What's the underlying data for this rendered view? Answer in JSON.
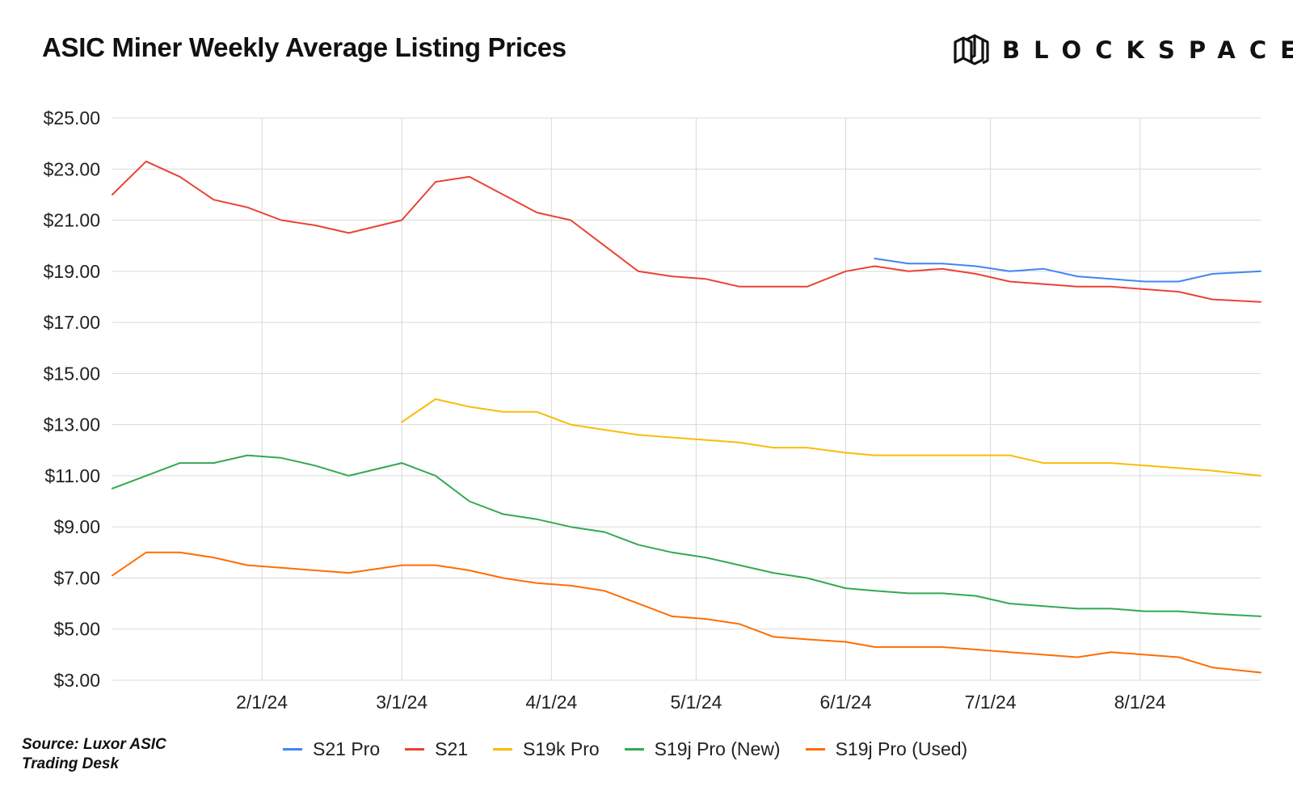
{
  "header": {
    "title": "ASIC Miner Weekly Average Listing Prices",
    "brand": "BLOCKSPACE",
    "brand_icon": "stacked-cubes-logo-icon"
  },
  "footer": {
    "source": "Source: Luxor ASIC Trading Desk"
  },
  "chart_data": {
    "type": "line",
    "title": "ASIC Miner Weekly Average Listing Prices",
    "xlabel": "",
    "ylabel": "",
    "x_range": [
      "2024-01-01",
      "2024-08-26"
    ],
    "ylim": [
      3,
      25
    ],
    "y_ticks": [
      3,
      5,
      7,
      9,
      11,
      13,
      15,
      17,
      19,
      21,
      23,
      25
    ],
    "y_tick_labels": [
      "$3.00",
      "$5.00",
      "$7.00",
      "$9.00",
      "$11.00",
      "$13.00",
      "$15.00",
      "$17.00",
      "$19.00",
      "$21.00",
      "$23.00",
      "$25.00"
    ],
    "x_ticks": [
      "2024-02-01",
      "2024-03-01",
      "2024-04-01",
      "2024-05-01",
      "2024-06-01",
      "2024-07-01",
      "2024-08-01"
    ],
    "x_tick_labels": [
      "2/1/24",
      "3/1/24",
      "4/1/24",
      "5/1/24",
      "6/1/24",
      "7/1/24",
      "8/1/24"
    ],
    "grid": true,
    "legend_position": "bottom",
    "series": [
      {
        "name": "S21 Pro",
        "color": "#4285f4",
        "points": [
          [
            "2024-06-07",
            19.5
          ],
          [
            "2024-06-14",
            19.3
          ],
          [
            "2024-06-21",
            19.3
          ],
          [
            "2024-06-28",
            19.2
          ],
          [
            "2024-07-05",
            19.0
          ],
          [
            "2024-07-12",
            19.1
          ],
          [
            "2024-07-19",
            18.8
          ],
          [
            "2024-07-26",
            18.7
          ],
          [
            "2024-08-02",
            18.6
          ],
          [
            "2024-08-09",
            18.6
          ],
          [
            "2024-08-16",
            18.9
          ],
          [
            "2024-08-26",
            19.0
          ]
        ]
      },
      {
        "name": "S21",
        "color": "#ea4335",
        "points": [
          [
            "2024-01-01",
            22.0
          ],
          [
            "2024-01-08",
            23.3
          ],
          [
            "2024-01-15",
            22.7
          ],
          [
            "2024-01-22",
            21.8
          ],
          [
            "2024-01-29",
            21.5
          ],
          [
            "2024-02-05",
            21.0
          ],
          [
            "2024-02-12",
            20.8
          ],
          [
            "2024-02-19",
            20.5
          ],
          [
            "2024-03-01",
            21.0
          ],
          [
            "2024-03-08",
            22.5
          ],
          [
            "2024-03-15",
            22.7
          ],
          [
            "2024-03-22",
            22.0
          ],
          [
            "2024-03-29",
            21.3
          ],
          [
            "2024-04-05",
            21.0
          ],
          [
            "2024-04-12",
            20.0
          ],
          [
            "2024-04-19",
            19.0
          ],
          [
            "2024-04-26",
            18.8
          ],
          [
            "2024-05-03",
            18.7
          ],
          [
            "2024-05-10",
            18.4
          ],
          [
            "2024-05-17",
            18.4
          ],
          [
            "2024-05-24",
            18.4
          ],
          [
            "2024-06-01",
            19.0
          ],
          [
            "2024-06-07",
            19.2
          ],
          [
            "2024-06-14",
            19.0
          ],
          [
            "2024-06-21",
            19.1
          ],
          [
            "2024-06-28",
            18.9
          ],
          [
            "2024-07-05",
            18.6
          ],
          [
            "2024-07-12",
            18.5
          ],
          [
            "2024-07-19",
            18.4
          ],
          [
            "2024-07-26",
            18.4
          ],
          [
            "2024-08-02",
            18.3
          ],
          [
            "2024-08-09",
            18.2
          ],
          [
            "2024-08-16",
            17.9
          ],
          [
            "2024-08-26",
            17.8
          ]
        ]
      },
      {
        "name": "S19k Pro",
        "color": "#fbbc04",
        "points": [
          [
            "2024-03-01",
            13.1
          ],
          [
            "2024-03-08",
            14.0
          ],
          [
            "2024-03-15",
            13.7
          ],
          [
            "2024-03-22",
            13.5
          ],
          [
            "2024-03-29",
            13.5
          ],
          [
            "2024-04-05",
            13.0
          ],
          [
            "2024-04-12",
            12.8
          ],
          [
            "2024-04-19",
            12.6
          ],
          [
            "2024-04-26",
            12.5
          ],
          [
            "2024-05-03",
            12.4
          ],
          [
            "2024-05-10",
            12.3
          ],
          [
            "2024-05-17",
            12.1
          ],
          [
            "2024-05-24",
            12.1
          ],
          [
            "2024-06-01",
            11.9
          ],
          [
            "2024-06-07",
            11.8
          ],
          [
            "2024-06-14",
            11.8
          ],
          [
            "2024-06-21",
            11.8
          ],
          [
            "2024-06-28",
            11.8
          ],
          [
            "2024-07-05",
            11.8
          ],
          [
            "2024-07-12",
            11.5
          ],
          [
            "2024-07-19",
            11.5
          ],
          [
            "2024-07-26",
            11.5
          ],
          [
            "2024-08-02",
            11.4
          ],
          [
            "2024-08-09",
            11.3
          ],
          [
            "2024-08-16",
            11.2
          ],
          [
            "2024-08-26",
            11.0
          ]
        ]
      },
      {
        "name": "S19j Pro (New)",
        "color": "#34a853",
        "points": [
          [
            "2024-01-01",
            10.5
          ],
          [
            "2024-01-08",
            11.0
          ],
          [
            "2024-01-15",
            11.5
          ],
          [
            "2024-01-22",
            11.5
          ],
          [
            "2024-01-29",
            11.8
          ],
          [
            "2024-02-05",
            11.7
          ],
          [
            "2024-02-12",
            11.4
          ],
          [
            "2024-02-19",
            11.0
          ],
          [
            "2024-03-01",
            11.5
          ],
          [
            "2024-03-08",
            11.0
          ],
          [
            "2024-03-15",
            10.0
          ],
          [
            "2024-03-22",
            9.5
          ],
          [
            "2024-03-29",
            9.3
          ],
          [
            "2024-04-05",
            9.0
          ],
          [
            "2024-04-12",
            8.8
          ],
          [
            "2024-04-19",
            8.3
          ],
          [
            "2024-04-26",
            8.0
          ],
          [
            "2024-05-03",
            7.8
          ],
          [
            "2024-05-10",
            7.5
          ],
          [
            "2024-05-17",
            7.2
          ],
          [
            "2024-05-24",
            7.0
          ],
          [
            "2024-06-01",
            6.6
          ],
          [
            "2024-06-07",
            6.5
          ],
          [
            "2024-06-14",
            6.4
          ],
          [
            "2024-06-21",
            6.4
          ],
          [
            "2024-06-28",
            6.3
          ],
          [
            "2024-07-05",
            6.0
          ],
          [
            "2024-07-12",
            5.9
          ],
          [
            "2024-07-19",
            5.8
          ],
          [
            "2024-07-26",
            5.8
          ],
          [
            "2024-08-02",
            5.7
          ],
          [
            "2024-08-09",
            5.7
          ],
          [
            "2024-08-16",
            5.6
          ],
          [
            "2024-08-26",
            5.5
          ]
        ]
      },
      {
        "name": "S19j Pro (Used)",
        "color": "#ff6d01",
        "points": [
          [
            "2024-01-01",
            7.1
          ],
          [
            "2024-01-08",
            8.0
          ],
          [
            "2024-01-15",
            8.0
          ],
          [
            "2024-01-22",
            7.8
          ],
          [
            "2024-01-29",
            7.5
          ],
          [
            "2024-02-05",
            7.4
          ],
          [
            "2024-02-12",
            7.3
          ],
          [
            "2024-02-19",
            7.2
          ],
          [
            "2024-03-01",
            7.5
          ],
          [
            "2024-03-08",
            7.5
          ],
          [
            "2024-03-15",
            7.3
          ],
          [
            "2024-03-22",
            7.0
          ],
          [
            "2024-03-29",
            6.8
          ],
          [
            "2024-04-05",
            6.7
          ],
          [
            "2024-04-12",
            6.5
          ],
          [
            "2024-04-19",
            6.0
          ],
          [
            "2024-04-26",
            5.5
          ],
          [
            "2024-05-03",
            5.4
          ],
          [
            "2024-05-10",
            5.2
          ],
          [
            "2024-05-17",
            4.7
          ],
          [
            "2024-05-24",
            4.6
          ],
          [
            "2024-06-01",
            4.5
          ],
          [
            "2024-06-07",
            4.3
          ],
          [
            "2024-06-14",
            4.3
          ],
          [
            "2024-06-21",
            4.3
          ],
          [
            "2024-06-28",
            4.2
          ],
          [
            "2024-07-05",
            4.1
          ],
          [
            "2024-07-12",
            4.0
          ],
          [
            "2024-07-19",
            3.9
          ],
          [
            "2024-07-26",
            4.1
          ],
          [
            "2024-08-02",
            4.0
          ],
          [
            "2024-08-09",
            3.9
          ],
          [
            "2024-08-16",
            3.5
          ],
          [
            "2024-08-26",
            3.3
          ]
        ]
      }
    ]
  }
}
